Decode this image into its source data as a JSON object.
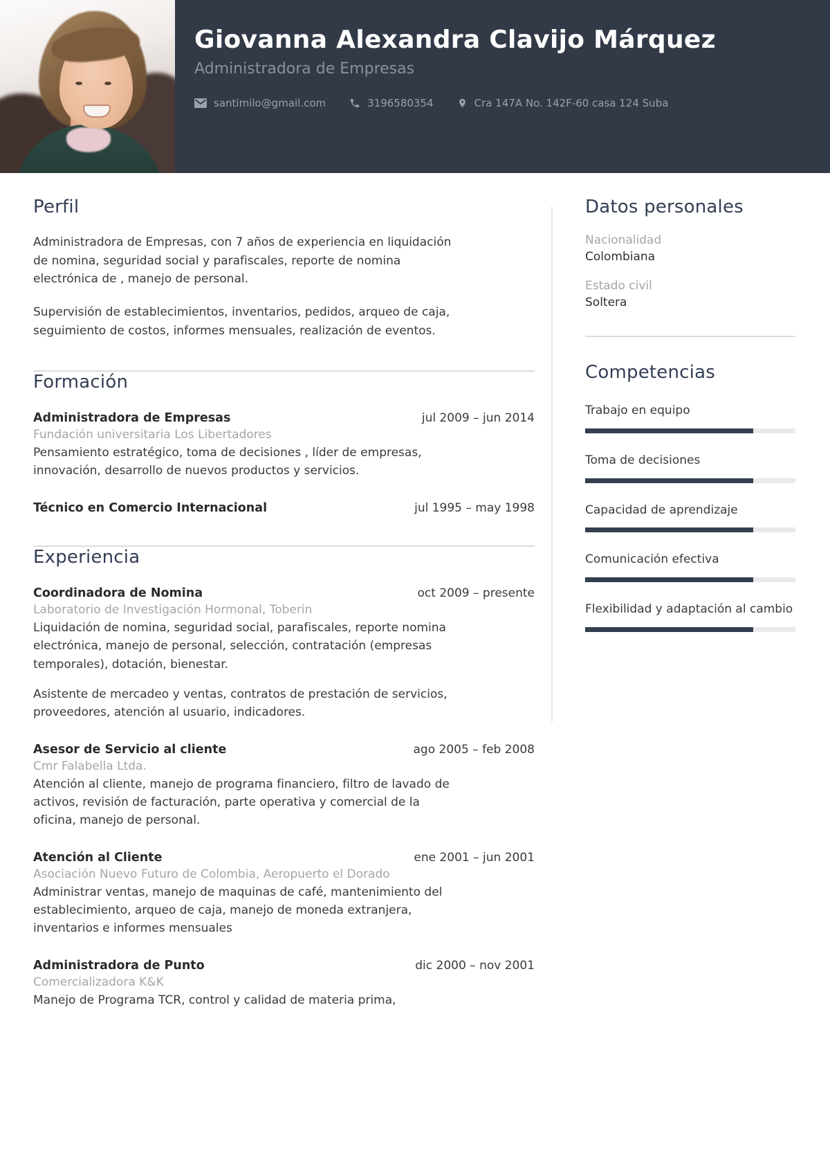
{
  "header": {
    "name": "Giovanna Alexandra Clavijo Márquez",
    "title": "Administradora de Empresas",
    "contact": {
      "email": "santimilo@gmail.com",
      "phone": "3196580354",
      "address": "Cra 147A No. 142F-60 casa 124 Suba"
    },
    "icons": {
      "email": "envelope-icon",
      "phone": "phone-icon",
      "address": "map-pin-icon"
    }
  },
  "perfil": {
    "heading": "Perfil",
    "paragraphs": [
      "Administradora de Empresas, con 7 años de experiencia en liquidación de nomina, seguridad social y parafiscales, reporte de nomina electrónica de , manejo de personal.",
      "Supervisión de establecimientos, inventarios, pedidos, arqueo de caja, seguimiento de costos, informes mensuales, realización de eventos."
    ]
  },
  "formacion": {
    "heading": "Formación",
    "entries": [
      {
        "title": "Administradora de Empresas",
        "date": "jul 2009 – jun 2014",
        "institution": "Fundación universitaria Los Libertadores",
        "description": "Pensamiento estratégico, toma de decisiones , líder de empresas, innovación,  desarrollo de nuevos productos y servicios."
      },
      {
        "title": "Técnico en Comercio Internacional",
        "date": "jul 1995 – may 1998"
      }
    ]
  },
  "experiencia": {
    "heading": "Experiencia",
    "entries": [
      {
        "title": "Coordinadora de Nomina",
        "date": "oct 2009 – presente",
        "company": "Laboratorio de Investigación Hormonal, Toberin",
        "paragraphs": [
          "Liquidación de nomina, seguridad social, parafiscales, reporte nomina electrónica, manejo de personal, selección, contratación (empresas temporales), dotación, bienestar.",
          "Asistente de mercadeo y ventas, contratos de prestación de servicios, proveedores, atención al usuario, indicadores."
        ]
      },
      {
        "title": "Asesor de Servicio al cliente",
        "date": "ago 2005 – feb 2008",
        "company": "Cmr Falabella Ltda.",
        "paragraphs": [
          "Atención al cliente, manejo de programa financiero, filtro de lavado de activos, revisión de facturación, parte operativa y comercial de la oficina, manejo de personal."
        ]
      },
      {
        "title": "Atención al Cliente",
        "date": "ene 2001 – jun 2001",
        "company": "Asociación Nuevo Futuro de Colombia, Aeropuerto el Dorado",
        "paragraphs": [
          "Administrar ventas, manejo de maquinas de café, mantenimiento del establecimiento, arqueo de caja, manejo de moneda extranjera, inventarios e informes mensuales"
        ]
      },
      {
        "title": "Administradora de Punto",
        "date": "dic 2000 – nov 2001",
        "company": "Comercializadora K&K",
        "paragraphs": [
          "Manejo de Programa TCR, control y calidad de materia prima,"
        ]
      }
    ]
  },
  "sidebar": {
    "datos": {
      "heading": "Datos personales",
      "fields": [
        {
          "label": "Nacionalidad",
          "value": "Colombiana"
        },
        {
          "label": "Estado civil",
          "value": "Soltera"
        }
      ]
    },
    "competencias": {
      "heading": "Competencias",
      "skills": [
        {
          "label": "Trabajo en equipo",
          "percent": 80
        },
        {
          "label": "Toma de decisiones",
          "percent": 80
        },
        {
          "label": "Capacidad de aprendizaje",
          "percent": 80
        },
        {
          "label": "Comunicación efectiva",
          "percent": 80
        },
        {
          "label": "Flexibilidad y adaptación al cambio",
          "percent": 80
        }
      ]
    }
  },
  "colors": {
    "header_bg": "#323a48",
    "heading": "#333e54",
    "body_text": "#3a3a3c",
    "muted_text": "#a5a5a7",
    "bar_fill": "#333e4e",
    "bar_track": "#e9e9eb",
    "divider": "#dcdcde"
  }
}
